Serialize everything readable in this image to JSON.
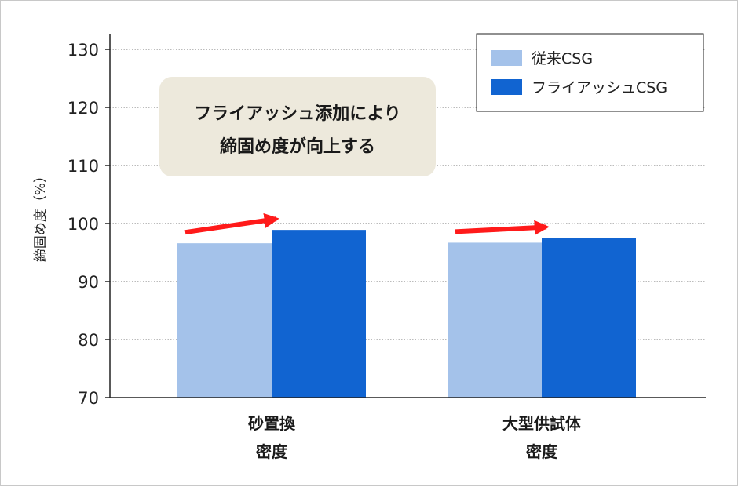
{
  "chart_data": {
    "type": "bar",
    "categories": [
      [
        "砂置換",
        "密度"
      ],
      [
        "大型供試体",
        "密度"
      ]
    ],
    "series": [
      {
        "name": "従来CSG",
        "values": [
          96.6,
          96.7
        ],
        "color": "#a4c2ea"
      },
      {
        "name": "フライアッシュCSG",
        "values": [
          98.9,
          97.5
        ],
        "color": "#1164d1"
      }
    ],
    "ylabel": "締固め度（%）",
    "ylim": [
      70,
      130
    ],
    "yticks": [
      70,
      80,
      90,
      100,
      110,
      120,
      130
    ],
    "grid": true,
    "legend_position": "top-right",
    "annotation": {
      "lines": [
        "フライアッシュ添加により",
        "締固め度が向上する"
      ],
      "box_color": "#ede9dc"
    },
    "arrow_color": "#ff1a1a"
  }
}
